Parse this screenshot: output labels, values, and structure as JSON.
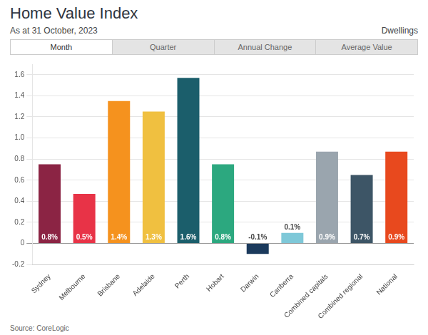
{
  "chart_data": {
    "type": "bar",
    "title": "Home Value Index",
    "subtitle": "As at 31 October, 2023",
    "annotations": [
      "Dwellings"
    ],
    "tabs": [
      "Month",
      "Quarter",
      "Annual Change",
      "Average Value"
    ],
    "source": "Source: CoreLogic",
    "categories": [
      "Sydney",
      "Melbourne",
      "Brisbane",
      "Adelaide",
      "Perth",
      "Hobart",
      "Darwin",
      "Canberra",
      "Combined capitals",
      "Combined regional",
      "National"
    ],
    "values": [
      0.75,
      0.47,
      1.35,
      1.25,
      1.57,
      0.75,
      -0.1,
      0.1,
      0.87,
      0.65,
      0.87
    ],
    "value_labels": [
      "0.8%",
      "0.5%",
      "1.4%",
      "1.3%",
      "1.6%",
      "0.8%",
      "-0.1%",
      "0.1%",
      "0.9%",
      "0.7%",
      "0.9%"
    ],
    "colors": [
      "#8B2444",
      "#E83347",
      "#F5921E",
      "#F0C040",
      "#1B5E6B",
      "#2CA87F",
      "#1B3A5C",
      "#7EC8D8",
      "#9AA5AE",
      "#3D5566",
      "#E8491E"
    ],
    "ylim": [
      -0.2,
      1.7
    ],
    "yticks": [
      -0.2,
      0,
      0.2,
      0.4,
      0.6,
      0.8,
      {
        "value": 1,
        "label": "1.0"
      },
      1.2,
      1.4,
      1.6
    ],
    "grid": true,
    "data_labels": true
  }
}
